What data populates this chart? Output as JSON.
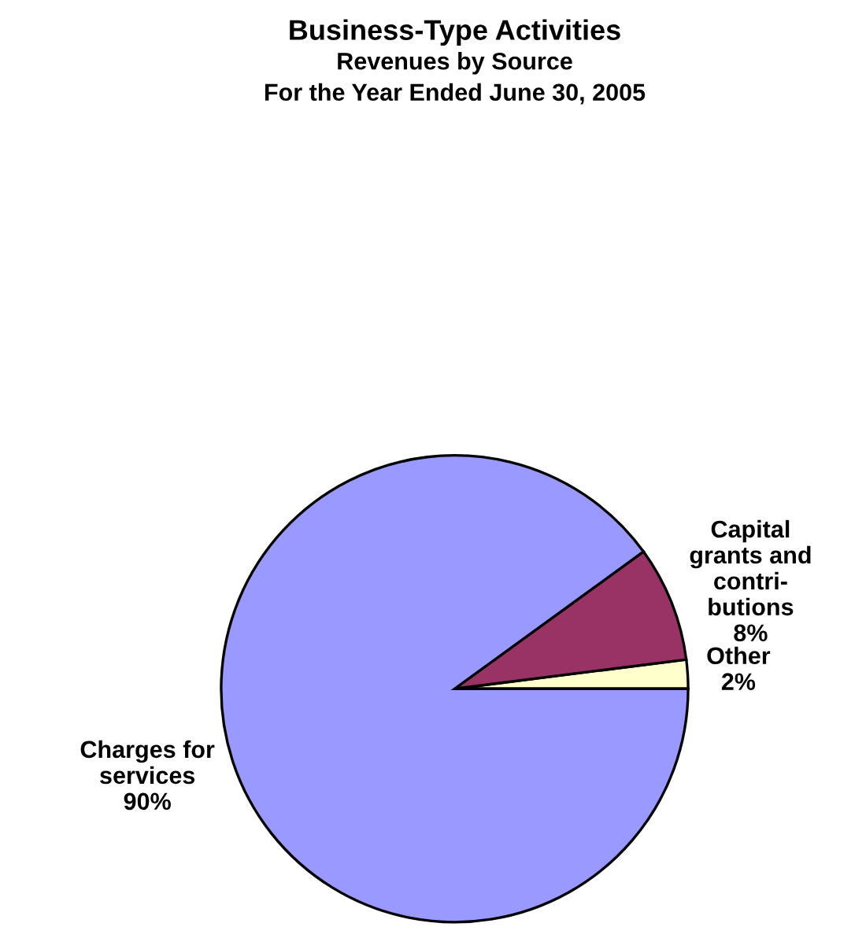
{
  "chart_data": {
    "type": "pie",
    "title": "Business-Type Activities",
    "subtitle": "Revenues by Source\nFor the Year Ended June 30, 2005",
    "categories": [
      "Other",
      "Capital\ngrants and\ncontri-\nbutions",
      "Charges for\nservices"
    ],
    "values": [
      2,
      8,
      90
    ],
    "colors": [
      "#ffffcc",
      "#993366",
      "#9999ff"
    ],
    "value_labels": [
      "2%",
      "8%",
      "90%"
    ]
  }
}
